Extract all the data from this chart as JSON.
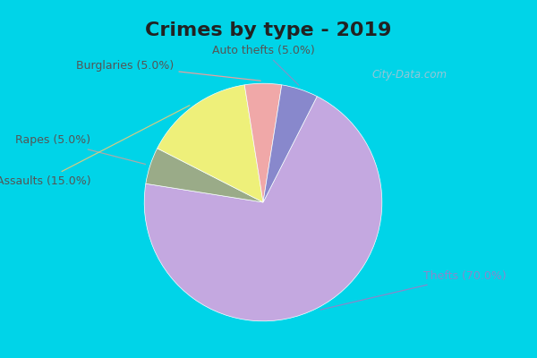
{
  "title": "Crimes by type - 2019",
  "slices": [
    {
      "label": "Thefts",
      "pct": 70.0,
      "color": "#c4a8e0"
    },
    {
      "label": "Rapes",
      "pct": 5.0,
      "color": "#9aab88"
    },
    {
      "label": "Assaults",
      "pct": 15.0,
      "color": "#eef07a"
    },
    {
      "label": "Burglaries",
      "pct": 5.0,
      "color": "#f0a8a8"
    },
    {
      "label": "Auto thefts",
      "pct": 5.0,
      "color": "#8888cc"
    }
  ],
  "background_cyan": "#00d4e8",
  "background_inner": "#d8edd8",
  "watermark": "City-Data.com",
  "title_fontsize": 16,
  "label_fontsize": 9,
  "startangle": 63
}
